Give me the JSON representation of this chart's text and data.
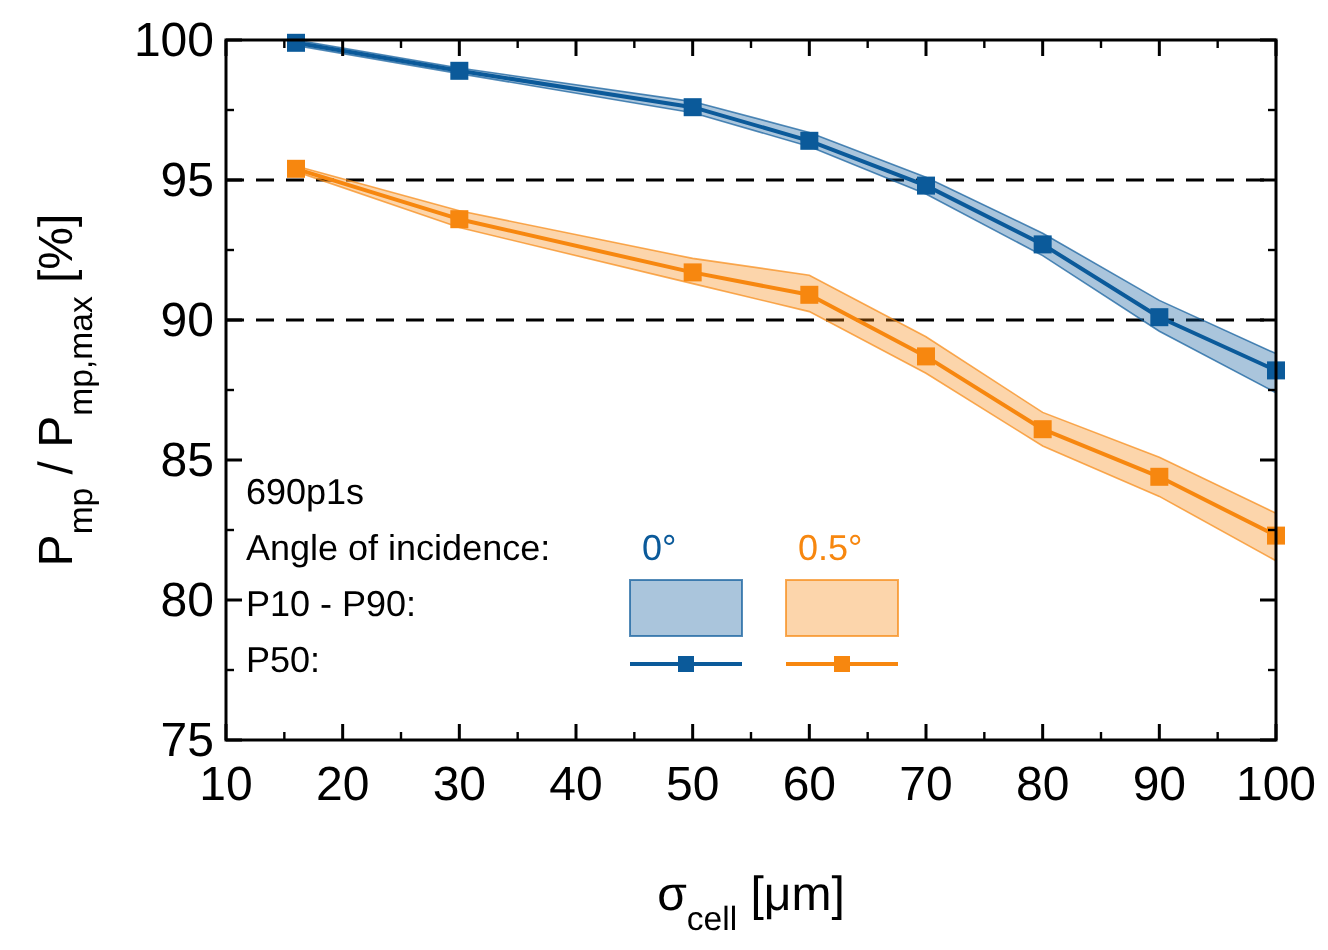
{
  "chart_data": {
    "type": "line",
    "xlabel": "σ$_{cell}$ [μm]",
    "ylabel": "P$_{mp}$ / P$_{mp,max}$ [%]",
    "legend_title": "Angle of incidence:",
    "annotations": [
      "690p1s",
      "P10 - P90:",
      "P50:"
    ],
    "xlim": [
      10,
      100
    ],
    "xticks": [
      10,
      20,
      30,
      40,
      50,
      60,
      70,
      80,
      90,
      100
    ],
    "ylim": [
      75,
      100
    ],
    "yticks": [
      75,
      80,
      85,
      90,
      95,
      100
    ],
    "x": [
      16,
      30,
      50,
      60,
      70,
      80,
      90,
      100
    ],
    "marker": "square",
    "line_style": "solid",
    "legend": "bottom left",
    "grid": false,
    "ref_lines": [
      {
        "axis": "y",
        "value": 95,
        "color": "#000000",
        "line_style": "dashed"
      },
      {
        "axis": "y",
        "value": 90,
        "color": "#000000",
        "line_style": "dashed"
      }
    ],
    "series": [
      {
        "name": "0°",
        "color": "#0b5a9a",
        "values": [
          99.9,
          98.9,
          97.6,
          96.4,
          94.8,
          92.7,
          90.1,
          88.2
        ],
        "lower": [
          99.8,
          98.8,
          97.4,
          96.2,
          94.5,
          92.3,
          89.6,
          87.4
        ],
        "upper": [
          100,
          99.0,
          97.8,
          96.7,
          95.1,
          93.1,
          90.7,
          88.8
        ]
      },
      {
        "name": "0.5°",
        "color": "#f7870f",
        "values": [
          95.4,
          93.6,
          91.7,
          90.9,
          88.7,
          86.1,
          84.4,
          82.3
        ],
        "lower": [
          95.3,
          93.3,
          91.3,
          90.3,
          88.1,
          85.5,
          83.7,
          81.4
        ],
        "upper": [
          95.5,
          93.9,
          92.2,
          91.6,
          89.4,
          86.7,
          85.1,
          83.1
        ]
      }
    ]
  }
}
